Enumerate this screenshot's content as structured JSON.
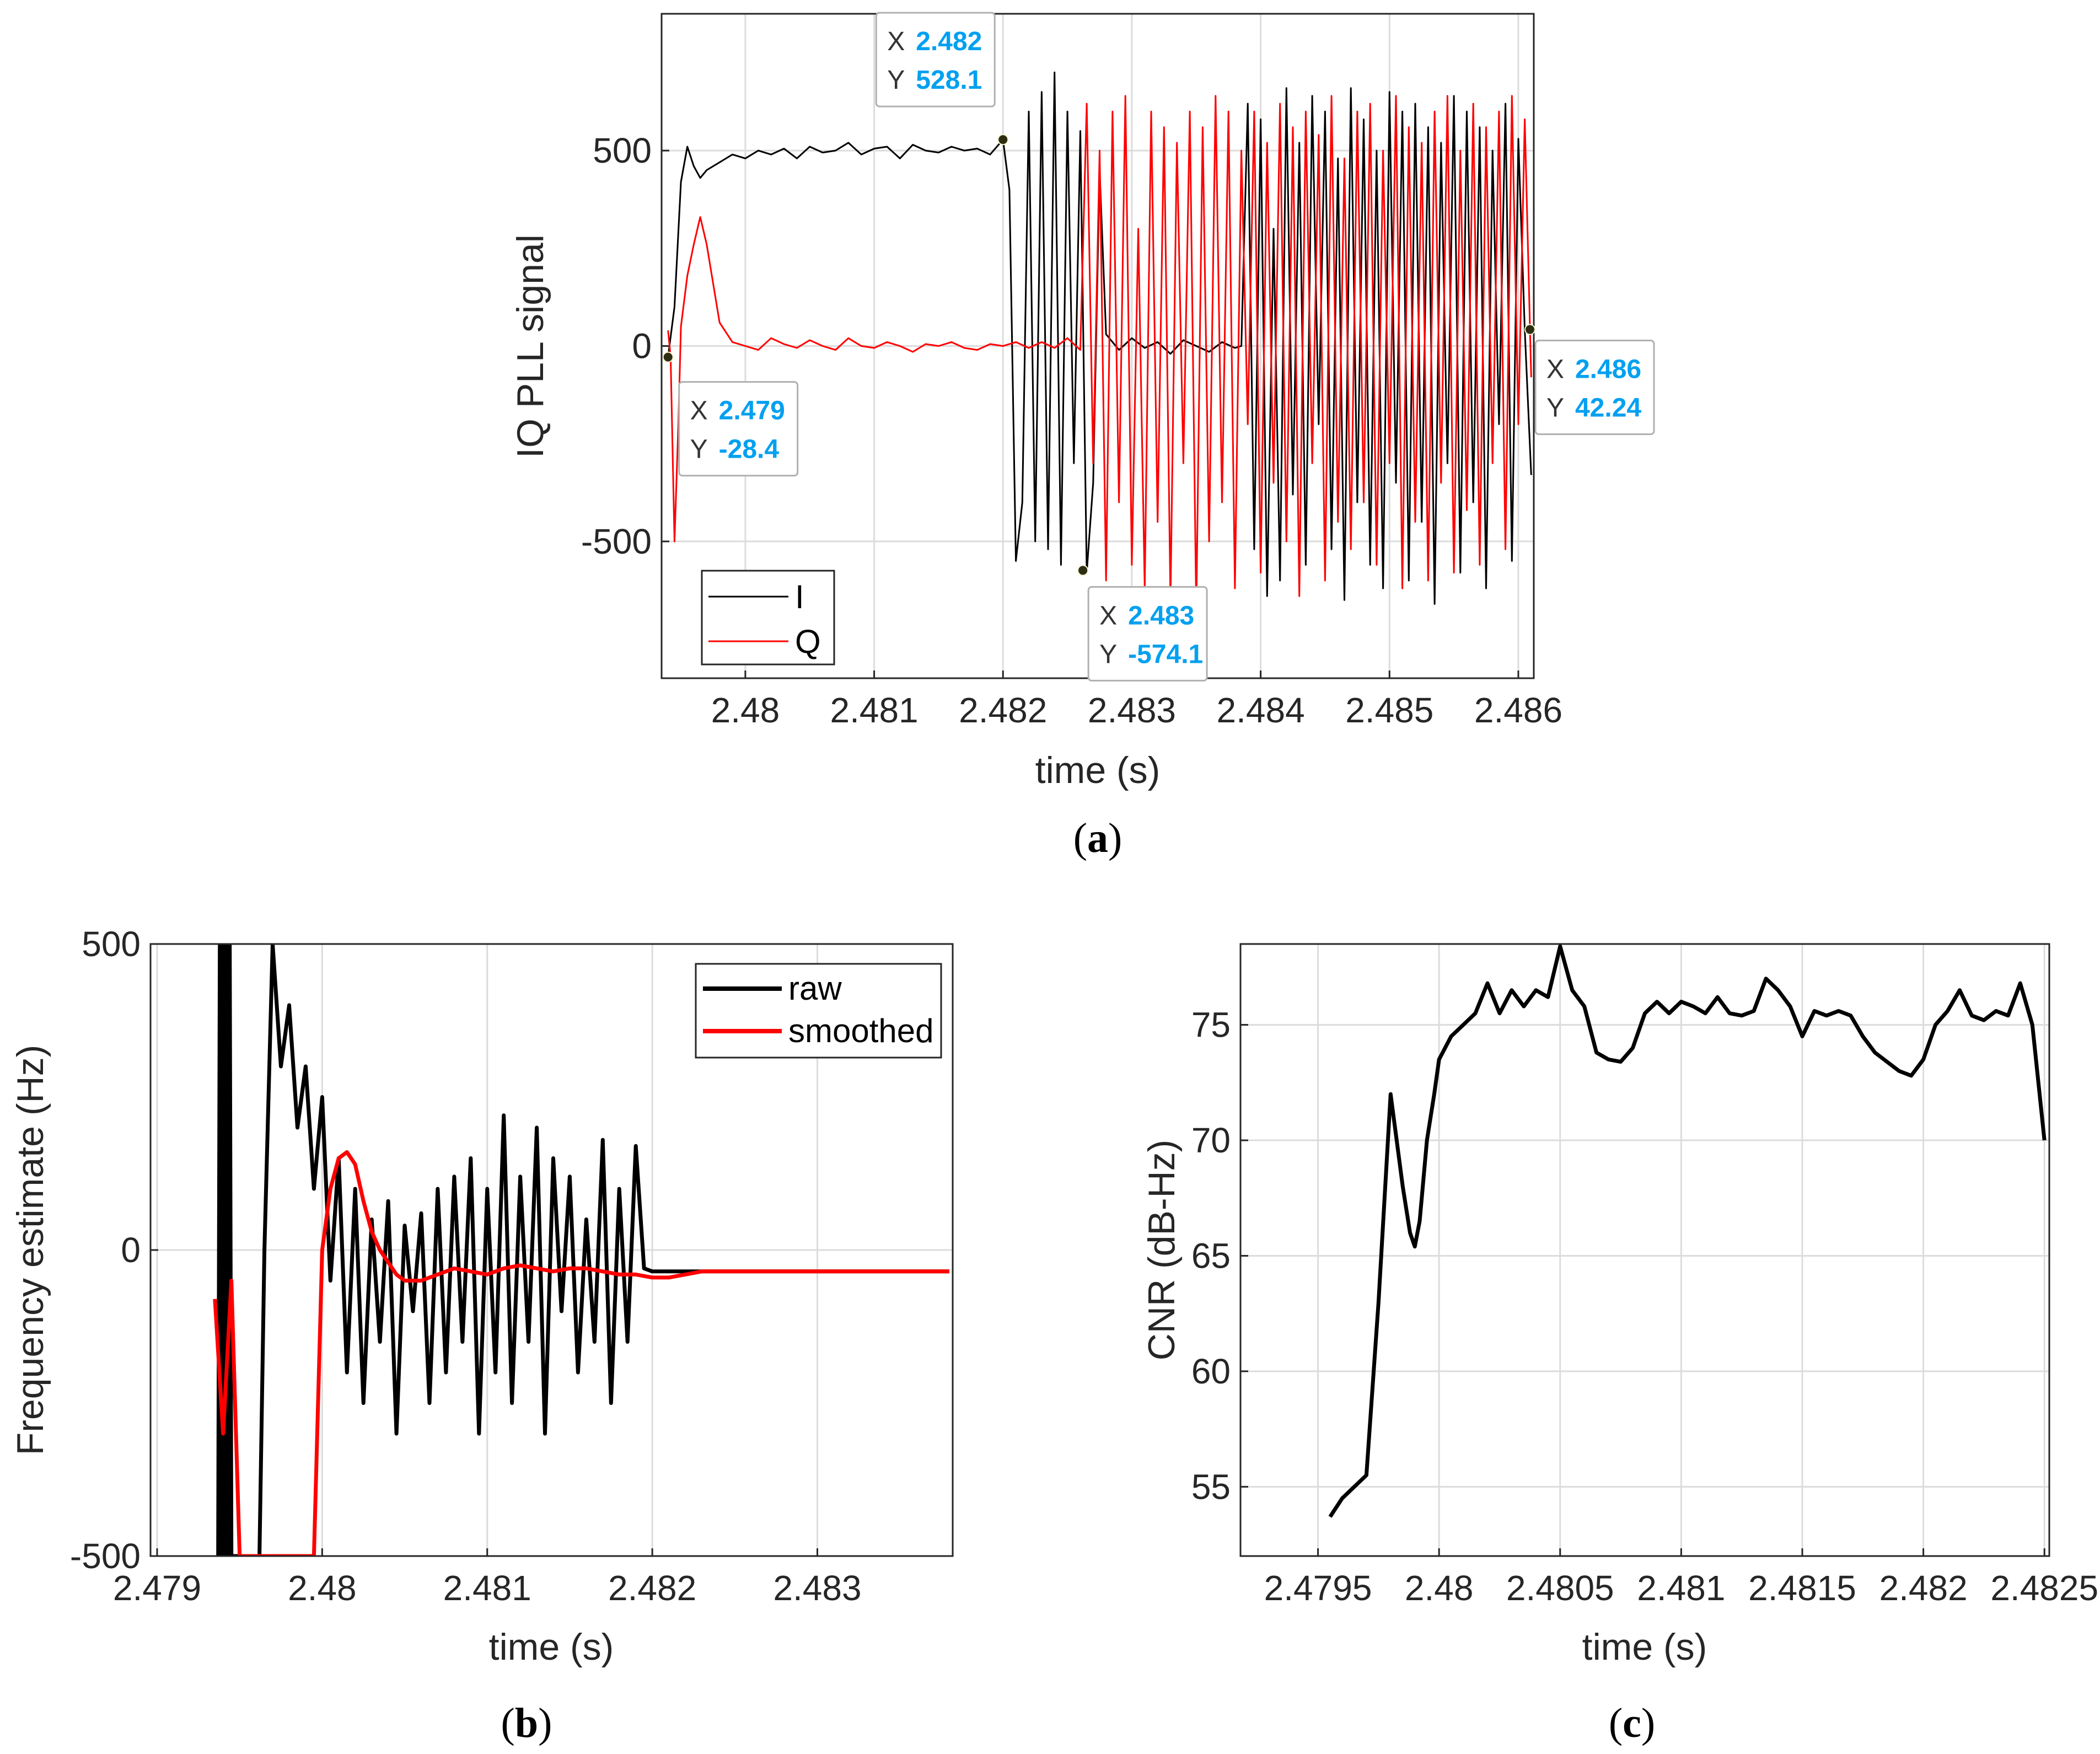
{
  "chart_data": [
    {
      "id": "a",
      "type": "line",
      "caption_label": "a",
      "xlabel": "time (s)",
      "ylabel": "IQ PLL signal",
      "xlim": [
        2.47935,
        2.48612
      ],
      "ylim": [
        -850,
        850
      ],
      "xticks": [
        2.48,
        2.481,
        2.482,
        2.483,
        2.484,
        2.485,
        2.486
      ],
      "xtick_labels": [
        "2.48",
        "2.481",
        "2.482",
        "2.483",
        "2.484",
        "2.485",
        "2.486"
      ],
      "yticks": [
        500,
        0,
        -500
      ],
      "ytick_labels": [
        "500",
        "0",
        "-500"
      ],
      "legend": {
        "position": "bottom-left",
        "entries": [
          "I",
          "Q"
        ]
      },
      "series": [
        {
          "name": "I",
          "color": "#000000",
          "x": [
            2.4794,
            2.47945,
            2.4795,
            2.47955,
            2.4796,
            2.47965,
            2.4797,
            2.4798,
            2.4799,
            2.48,
            2.4801,
            2.4802,
            2.4803,
            2.4804,
            2.4805,
            2.4806,
            2.4807,
            2.4808,
            2.4809,
            2.481,
            2.4811,
            2.4812,
            2.4813,
            2.4814,
            2.4815,
            2.4816,
            2.4817,
            2.4818,
            2.4819,
            2.482,
            2.48205,
            2.4821,
            2.48215,
            2.4822,
            2.48225,
            2.4823,
            2.48235,
            2.4824,
            2.48245,
            2.4825,
            2.48255,
            2.4826,
            2.48265,
            2.4827,
            2.48275,
            2.4828,
            2.4829,
            2.483,
            2.4831,
            2.4832,
            2.4833,
            2.4834,
            2.4835,
            2.4836,
            2.4837,
            2.4838,
            2.48385,
            2.4839,
            2.48395,
            2.484,
            2.48405,
            2.4841,
            2.48415,
            2.4842,
            2.48425,
            2.4843,
            2.48435,
            2.4844,
            2.48445,
            2.4845,
            2.48455,
            2.4846,
            2.48465,
            2.4847,
            2.48475,
            2.4848,
            2.48485,
            2.4849,
            2.48495,
            2.485,
            2.48505,
            2.4851,
            2.48515,
            2.4852,
            2.48525,
            2.4853,
            2.48535,
            2.4854,
            2.48545,
            2.4855,
            2.48555,
            2.4856,
            2.48565,
            2.4857,
            2.48575,
            2.4858,
            2.48585,
            2.4859,
            2.48595,
            2.486,
            2.48605,
            2.4861
          ],
          "y": [
            -28,
            100,
            420,
            510,
            460,
            430,
            450,
            470,
            490,
            480,
            500,
            490,
            505,
            480,
            510,
            495,
            500,
            520,
            490,
            505,
            510,
            480,
            515,
            500,
            495,
            510,
            500,
            505,
            490,
            528,
            400,
            -550,
            -400,
            600,
            -500,
            650,
            -520,
            700,
            -560,
            600,
            -300,
            550,
            -580,
            -350,
            450,
            30,
            -10,
            20,
            -5,
            10,
            -20,
            15,
            0,
            -15,
            10,
            -5,
            0,
            620,
            -520,
            580,
            -640,
            300,
            -600,
            660,
            -380,
            520,
            -560,
            640,
            -200,
            600,
            -520,
            480,
            -650,
            660,
            -400,
            580,
            -560,
            500,
            -620,
            650,
            -350,
            600,
            -600,
            620,
            -450,
            560,
            -660,
            520,
            -300,
            640,
            -580,
            600,
            -400,
            560,
            -620,
            500,
            -200,
            620,
            -550,
            530,
            42,
            -330
          ]
        },
        {
          "name": "Q",
          "color": "#ff0000",
          "x": [
            2.4794,
            2.47942,
            2.47945,
            2.47948,
            2.4795,
            2.47955,
            2.4796,
            2.47965,
            2.4797,
            2.47975,
            2.4798,
            2.4799,
            2.48,
            2.4801,
            2.4802,
            2.4803,
            2.4804,
            2.4805,
            2.4806,
            2.4807,
            2.4808,
            2.4809,
            2.481,
            2.4811,
            2.4812,
            2.4813,
            2.4814,
            2.4815,
            2.4816,
            2.4817,
            2.4818,
            2.4819,
            2.482,
            2.4821,
            2.4822,
            2.4823,
            2.4824,
            2.4825,
            2.4826,
            2.48265,
            2.4827,
            2.48275,
            2.4828,
            2.48285,
            2.4829,
            2.48295,
            2.483,
            2.48305,
            2.4831,
            2.48315,
            2.4832,
            2.48325,
            2.4833,
            2.48335,
            2.4834,
            2.48345,
            2.4835,
            2.48355,
            2.4836,
            2.48365,
            2.4837,
            2.48375,
            2.4838,
            2.48385,
            2.4839,
            2.48395,
            2.484,
            2.48405,
            2.4841,
            2.48415,
            2.4842,
            2.48425,
            2.4843,
            2.48435,
            2.4844,
            2.48445,
            2.4845,
            2.48455,
            2.4846,
            2.48465,
            2.4847,
            2.48475,
            2.4848,
            2.48485,
            2.4849,
            2.48495,
            2.485,
            2.48505,
            2.4851,
            2.48515,
            2.4852,
            2.48525,
            2.4853,
            2.48535,
            2.4854,
            2.48545,
            2.4855,
            2.48555,
            2.4856,
            2.48565,
            2.4857,
            2.48575,
            2.4858,
            2.48585,
            2.4859,
            2.48595,
            2.486,
            2.48605,
            2.4861
          ],
          "y": [
            40,
            -28,
            -500,
            -200,
            50,
            180,
            260,
            330,
            260,
            160,
            60,
            10,
            0,
            -10,
            20,
            5,
            -5,
            15,
            0,
            -10,
            20,
            0,
            -5,
            10,
            0,
            -15,
            5,
            0,
            10,
            -5,
            -10,
            5,
            0,
            10,
            -5,
            10,
            -5,
            20,
            -10,
            620,
            -300,
            500,
            -600,
            600,
            -400,
            640,
            -560,
            300,
            -620,
            600,
            -450,
            560,
            -650,
            520,
            -300,
            600,
            -680,
            560,
            -500,
            640,
            -400,
            600,
            -620,
            500,
            -200,
            600,
            -580,
            520,
            -350,
            620,
            -500,
            560,
            -640,
            600,
            -300,
            540,
            -600,
            640,
            -450,
            480,
            -520,
            600,
            -400,
            620,
            -560,
            500,
            -300,
            640,
            -620,
            560,
            -450,
            520,
            -600,
            600,
            -350,
            640,
            -580,
            500,
            -420,
            620,
            -560,
            560,
            -300,
            600,
            -520,
            640,
            -200,
            580,
            -80
          ]
        }
      ],
      "datatips": [
        {
          "x_key": "X",
          "y_key": "Y",
          "x_text": "2.479",
          "y_text": "-28.4",
          "x": 2.4794,
          "y": -28.4,
          "color": "#00a0f0"
        },
        {
          "x_key": "X",
          "y_key": "Y",
          "x_text": "2.482",
          "y_text": "528.1",
          "x": 2.482,
          "y": 528.1,
          "color": "#00a0f0"
        },
        {
          "x_key": "X",
          "y_key": "Y",
          "x_text": "2.483",
          "y_text": "-574.1",
          "x": 2.48262,
          "y": -574.1,
          "color": "#00a0f0"
        },
        {
          "x_key": "X",
          "y_key": "Y",
          "x_text": "2.486",
          "y_text": "42.24",
          "x": 2.48609,
          "y": 42.24,
          "color": "#00a0f0"
        }
      ]
    },
    {
      "id": "b",
      "type": "line",
      "caption_label": "b",
      "xlabel": "time (s)",
      "ylabel": "Frequency estimate (Hz)",
      "xlim": [
        2.47896,
        2.48382
      ],
      "ylim": [
        -500,
        500
      ],
      "xticks": [
        2.479,
        2.48,
        2.481,
        2.482,
        2.483
      ],
      "xtick_labels": [
        "2.479",
        "2.48",
        "2.481",
        "2.482",
        "2.483"
      ],
      "yticks": [
        500,
        0,
        -500
      ],
      "ytick_labels": [
        "500",
        "0",
        "-500"
      ],
      "legend": {
        "position": "top-right",
        "entries": [
          "raw",
          "smoothed"
        ]
      },
      "series": [
        {
          "name": "raw",
          "color": "#000000",
          "x": [
            2.47937,
            2.47938,
            2.47939,
            2.4794,
            2.47941,
            2.47942,
            2.47943,
            2.47944,
            2.47945,
            2.47962,
            2.47965,
            2.4797,
            2.47975,
            2.4798,
            2.47985,
            2.4799,
            2.47995,
            2.48,
            2.48005,
            2.4801,
            2.48015,
            2.4802,
            2.48025,
            2.4803,
            2.48035,
            2.4804,
            2.48045,
            2.4805,
            2.48055,
            2.4806,
            2.48065,
            2.4807,
            2.48075,
            2.4808,
            2.48085,
            2.4809,
            2.48095,
            2.481,
            2.48105,
            2.4811,
            2.48115,
            2.4812,
            2.48125,
            2.4813,
            2.48135,
            2.4814,
            2.48145,
            2.4815,
            2.48155,
            2.4816,
            2.48165,
            2.4817,
            2.48175,
            2.4818,
            2.48185,
            2.4819,
            2.48195,
            2.482,
            2.4821,
            2.4822,
            2.4823,
            2.4824,
            2.4825,
            2.4826,
            2.4827,
            2.4828,
            2.4829,
            2.483,
            2.4831,
            2.4832,
            2.4833,
            2.4834,
            2.4835,
            2.4836,
            2.4837,
            2.4838
          ],
          "y": [
            -500,
            500,
            -500,
            500,
            -500,
            500,
            -500,
            500,
            -500,
            -500,
            0,
            500,
            300,
            400,
            200,
            300,
            100,
            250,
            -50,
            150,
            -200,
            100,
            -250,
            50,
            -150,
            80,
            -300,
            40,
            -100,
            60,
            -250,
            100,
            -200,
            120,
            -150,
            150,
            -300,
            100,
            -200,
            220,
            -250,
            120,
            -150,
            200,
            -300,
            150,
            -100,
            120,
            -200,
            50,
            -150,
            180,
            -250,
            100,
            -150,
            170,
            -30,
            -35,
            -35,
            -35,
            -35,
            -35,
            -35,
            -35,
            -35,
            -35,
            -35,
            -35,
            -35,
            -35,
            -35,
            -35,
            -35,
            -35,
            -35,
            -35
          ]
        },
        {
          "name": "smoothed",
          "color": "#ff0000",
          "x": [
            2.47935,
            2.4794,
            2.47945,
            2.4795,
            2.4796,
            2.4797,
            2.4798,
            2.4799,
            2.47995,
            2.48,
            2.48005,
            2.4801,
            2.48015,
            2.4802,
            2.48025,
            2.4803,
            2.48035,
            2.4804,
            2.48045,
            2.4805,
            2.4806,
            2.4807,
            2.4808,
            2.4809,
            2.481,
            2.4811,
            2.4812,
            2.4813,
            2.4814,
            2.4815,
            2.4816,
            2.4817,
            2.4818,
            2.4819,
            2.482,
            2.4821,
            2.4822,
            2.4823,
            2.4824,
            2.4825,
            2.4826,
            2.4827,
            2.4828,
            2.4829,
            2.483,
            2.4831,
            2.4832,
            2.4833,
            2.4834,
            2.4835,
            2.4836,
            2.4837,
            2.4838
          ],
          "y": [
            -80,
            -300,
            -50,
            -500,
            -500,
            -500,
            -500,
            -500,
            -500,
            0,
            100,
            150,
            160,
            140,
            80,
            30,
            0,
            -20,
            -40,
            -50,
            -50,
            -40,
            -30,
            -35,
            -40,
            -30,
            -25,
            -30,
            -35,
            -30,
            -30,
            -35,
            -40,
            -40,
            -45,
            -45,
            -40,
            -35,
            -35,
            -35,
            -35,
            -35,
            -35,
            -35,
            -35,
            -35,
            -35,
            -35,
            -35,
            -35,
            -35,
            -35,
            -35
          ]
        }
      ]
    },
    {
      "id": "c",
      "type": "line",
      "caption_label": "c",
      "xlabel": "time (s)",
      "ylabel": "CNR (dB-Hz)",
      "xlim": [
        2.47918,
        2.48252
      ],
      "ylim": [
        52,
        78.5
      ],
      "xticks": [
        2.4795,
        2.48,
        2.4805,
        2.481,
        2.4815,
        2.482,
        2.4825
      ],
      "xtick_labels": [
        "2.4795",
        "2.48",
        "2.4805",
        "2.481",
        "2.4815",
        "2.482",
        "2.4825"
      ],
      "yticks": [
        75,
        70,
        65,
        60,
        55
      ],
      "ytick_labels": [
        "75",
        "70",
        "65",
        "60",
        "55"
      ],
      "series": [
        {
          "name": "CNR",
          "color": "#000000",
          "x": [
            2.47955,
            2.4796,
            2.4797,
            2.47975,
            2.4798,
            2.47985,
            2.47988,
            2.4799,
            2.47992,
            2.47995,
            2.47998,
            2.48,
            2.48005,
            2.4801,
            2.48015,
            2.4802,
            2.48025,
            2.4803,
            2.48035,
            2.4804,
            2.48045,
            2.4805,
            2.48055,
            2.4806,
            2.48065,
            2.4807,
            2.48075,
            2.4808,
            2.48085,
            2.4809,
            2.48095,
            2.481,
            2.48105,
            2.4811,
            2.48115,
            2.4812,
            2.48125,
            2.4813,
            2.48135,
            2.4814,
            2.48145,
            2.4815,
            2.48155,
            2.4816,
            2.48165,
            2.4817,
            2.48175,
            2.4818,
            2.48185,
            2.4819,
            2.48195,
            2.482,
            2.48205,
            2.4821,
            2.48215,
            2.4822,
            2.48225,
            2.4823,
            2.48235,
            2.4824,
            2.48245,
            2.4825
          ],
          "y": [
            53.7,
            54.5,
            55.5,
            63,
            72,
            68,
            66,
            65.4,
            66.5,
            70,
            72,
            73.5,
            74.5,
            75,
            75.5,
            76.8,
            75.5,
            76.5,
            75.8,
            76.5,
            76.2,
            78.4,
            76.5,
            75.8,
            73.8,
            73.5,
            73.4,
            74,
            75.5,
            76,
            75.5,
            76,
            75.8,
            75.5,
            76.2,
            75.5,
            75.4,
            75.6,
            77,
            76.5,
            75.8,
            74.5,
            75.6,
            75.4,
            75.6,
            75.4,
            74.5,
            73.8,
            73.4,
            73,
            72.8,
            73.5,
            75,
            75.6,
            76.5,
            75.4,
            75.2,
            75.6,
            75.4,
            76.8,
            75,
            70
          ]
        }
      ]
    }
  ]
}
